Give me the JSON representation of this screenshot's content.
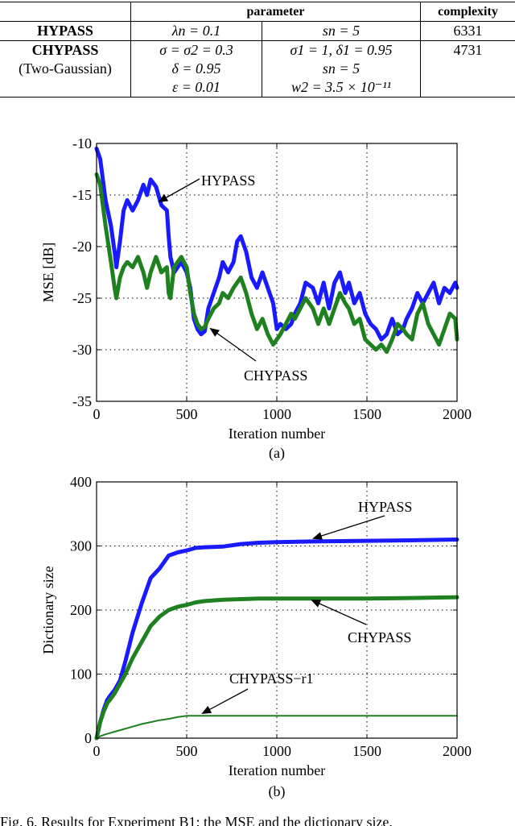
{
  "table": {
    "headers": {
      "parameter": "parameter",
      "complexity": "complexity"
    },
    "rows": [
      {
        "name": [
          "HYPASS"
        ],
        "p1": [
          "λn = 0.1"
        ],
        "p2": [
          "sn = 5"
        ],
        "complexity": "6331"
      },
      {
        "name": [
          "CHYPASS",
          "(Two-Gaussian)"
        ],
        "p1": [
          "σ = σ2 = 0.3",
          "δ = 0.95",
          "ε = 0.01"
        ],
        "p2": [
          "σ1 = 1, δ1 = 0.95",
          "sn = 5",
          "w2 = 3.5 × 10⁻¹¹"
        ],
        "complexity": "4731"
      }
    ]
  },
  "chart_data": [
    {
      "type": "line",
      "panel_label": "(a)",
      "xlabel": "Iteration number",
      "ylabel": "MSE [dB]",
      "xlim": [
        0,
        2000
      ],
      "ylim": [
        -35,
        -10
      ],
      "xticks": [
        0,
        500,
        1000,
        1500,
        2000
      ],
      "yticks": [
        -35,
        -30,
        -25,
        -20,
        -15,
        -10
      ],
      "grid": true,
      "series": [
        {
          "name": "HYPASS",
          "color": "#1a1aff",
          "x": [
            0,
            20,
            50,
            80,
            100,
            110,
            130,
            150,
            170,
            200,
            230,
            260,
            280,
            300,
            330,
            360,
            390,
            400,
            410,
            430,
            450,
            470,
            500,
            520,
            540,
            560,
            580,
            600,
            620,
            650,
            680,
            700,
            730,
            760,
            780,
            800,
            830,
            860,
            890,
            920,
            950,
            980,
            1000,
            1020,
            1050,
            1080,
            1100,
            1130,
            1160,
            1200,
            1230,
            1260,
            1290,
            1320,
            1350,
            1380,
            1400,
            1430,
            1460,
            1490,
            1520,
            1550,
            1580,
            1610,
            1640,
            1670,
            1700,
            1720,
            1750,
            1780,
            1810,
            1840,
            1870,
            1900,
            1930,
            1960,
            1990,
            2000
          ],
          "y": [
            -10.5,
            -11.5,
            -15.5,
            -18,
            -20.5,
            -22,
            -19.5,
            -16.5,
            -15.5,
            -16.5,
            -15.5,
            -14,
            -15,
            -13.5,
            -14.2,
            -16,
            -16.5,
            -19,
            -21,
            -22.5,
            -22,
            -21.5,
            -22.5,
            -24,
            -27,
            -28,
            -28.5,
            -28.2,
            -26,
            -24.5,
            -23,
            -21.5,
            -22.5,
            -21.5,
            -19.5,
            -19,
            -20.5,
            -23,
            -24,
            -22.5,
            -24,
            -25.5,
            -28,
            -27.5,
            -28,
            -27.5,
            -26.5,
            -25.5,
            -23.5,
            -24,
            -25.5,
            -23.5,
            -26,
            -23.5,
            -22.5,
            -24.5,
            -23.5,
            -25.5,
            -24.5,
            -26.5,
            -27.5,
            -28,
            -29,
            -28.5,
            -27,
            -28.5,
            -28,
            -27,
            -26,
            -24.5,
            -25.5,
            -24.5,
            -23.5,
            -25.5,
            -24,
            -24.5,
            -23.5,
            -24
          ]
        },
        {
          "name": "CHYPASS",
          "color": "#1e801e",
          "x": [
            0,
            20,
            50,
            80,
            100,
            110,
            130,
            150,
            170,
            200,
            230,
            260,
            280,
            300,
            330,
            360,
            390,
            400,
            410,
            430,
            450,
            470,
            500,
            520,
            540,
            560,
            580,
            600,
            620,
            650,
            680,
            700,
            730,
            760,
            780,
            800,
            830,
            860,
            890,
            920,
            950,
            980,
            1000,
            1020,
            1050,
            1080,
            1100,
            1130,
            1160,
            1200,
            1230,
            1260,
            1290,
            1320,
            1350,
            1380,
            1400,
            1430,
            1460,
            1490,
            1520,
            1550,
            1580,
            1610,
            1640,
            1670,
            1700,
            1720,
            1750,
            1780,
            1810,
            1840,
            1870,
            1900,
            1930,
            1960,
            1990,
            2000
          ],
          "y": [
            -13,
            -14,
            -18,
            -21.5,
            -24,
            -25,
            -23,
            -22,
            -21.5,
            -22,
            -21,
            -22.5,
            -24,
            -22.5,
            -21,
            -22.5,
            -22,
            -24.5,
            -25,
            -22,
            -21.5,
            -21,
            -22,
            -24.5,
            -26.5,
            -27.5,
            -28,
            -27.8,
            -27,
            -26,
            -25.5,
            -24.5,
            -25,
            -24,
            -23.5,
            -23,
            -24.5,
            -26.5,
            -28,
            -27,
            -28.5,
            -29.5,
            -29,
            -28.5,
            -27.5,
            -26.5,
            -27,
            -26,
            -25,
            -26,
            -27.5,
            -26,
            -27.5,
            -26,
            -24.5,
            -25.5,
            -26,
            -27.5,
            -27,
            -29,
            -29.5,
            -30,
            -29.5,
            -30.2,
            -29,
            -27.5,
            -28,
            -28.5,
            -29,
            -26.5,
            -25.5,
            -27.5,
            -28.5,
            -29.5,
            -28,
            -26.5,
            -27,
            -29
          ]
        }
      ],
      "annotations": [
        "HYPASS",
        "CHYPASS"
      ]
    },
    {
      "type": "line",
      "panel_label": "(b)",
      "xlabel": "Iteration number",
      "ylabel": "Dictionary size",
      "xlim": [
        0,
        2000
      ],
      "ylim": [
        0,
        400
      ],
      "xticks": [
        0,
        500,
        1000,
        1500,
        2000
      ],
      "yticks": [
        0,
        100,
        200,
        300,
        400
      ],
      "grid": true,
      "series": [
        {
          "name": "HYPASS",
          "color": "#1a1aff",
          "x": [
            0,
            20,
            40,
            60,
            80,
            100,
            130,
            160,
            200,
            250,
            300,
            350,
            400,
            450,
            500,
            550,
            600,
            700,
            800,
            900,
            1000,
            1200,
            1500,
            1800,
            2000
          ],
          "y": [
            0,
            25,
            45,
            60,
            68,
            75,
            90,
            120,
            165,
            210,
            250,
            265,
            285,
            290,
            293,
            297,
            298,
            299,
            303,
            305,
            306,
            307,
            308,
            309,
            310
          ]
        },
        {
          "name": "CHYPASS",
          "color": "#1e801e",
          "x": [
            0,
            20,
            40,
            60,
            80,
            100,
            130,
            160,
            200,
            250,
            300,
            350,
            400,
            450,
            500,
            550,
            600,
            700,
            800,
            900,
            1000,
            1200,
            1500,
            1800,
            2000
          ],
          "y": [
            0,
            25,
            42,
            55,
            62,
            70,
            85,
            100,
            125,
            150,
            175,
            190,
            200,
            205,
            208,
            212,
            214,
            216,
            217,
            218,
            218,
            218,
            218,
            219,
            220
          ]
        },
        {
          "name": "CHYPASS-r1",
          "color": "#1e801e",
          "x": [
            0,
            20,
            50,
            100,
            150,
            200,
            250,
            300,
            350,
            400,
            450,
            500,
            600,
            800,
            1000,
            1500,
            2000
          ],
          "y": [
            0,
            3,
            6,
            10,
            14,
            18,
            22,
            25,
            28,
            30,
            33,
            35,
            35,
            35,
            35,
            35,
            35
          ]
        }
      ],
      "annotations": [
        "HYPASS",
        "CHYPASS",
        "CHYPASS−r1"
      ]
    }
  ],
  "caption": "Fig. 6. Results for Experiment B1: the MSE and the dictionary size."
}
